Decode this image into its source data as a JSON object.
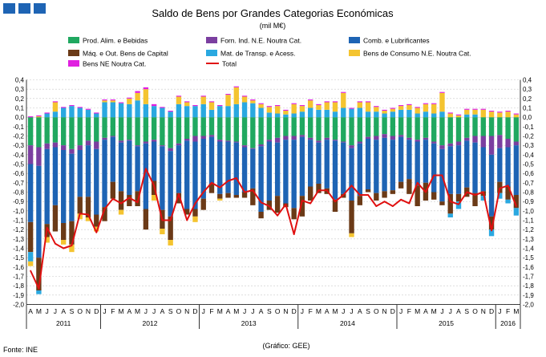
{
  "header": {
    "title": "Saldo de Bens por Grandes Categorias Económicas",
    "subtitle": "(mil M€)"
  },
  "footer": {
    "source": "Fonte: INE",
    "credit": "(Gráfico: GEE)"
  },
  "colors": {
    "food": "#20a860",
    "industrial": "#7b3fa0",
    "fuels": "#1e64b4",
    "capital": "#6b3a17",
    "transport": "#2aa8e0",
    "consumer": "#f4c430",
    "other": "#e020e0",
    "total": "#e01010",
    "brand": "#1e64b4"
  },
  "chart_data": {
    "type": "bar",
    "stacked": true,
    "title": "Saldo de Bens por Grandes Categorias Económicas",
    "ylabel": "(mil M€)",
    "ylim": [
      -2.0,
      0.4
    ],
    "yticks": [
      "0,4",
      "0,3",
      "0,2",
      "0,1",
      "0,0",
      "-0,1",
      "-0,2",
      "-0,3",
      "-0,4",
      "-0,5",
      "-0,6",
      "-0,7",
      "-0,8",
      "-0,9",
      "-1,0",
      "-1,1",
      "-1,2",
      "-1,3",
      "-1,4",
      "-1,5",
      "-1,6",
      "-1,7",
      "-1,8",
      "-1,9",
      "-2,0"
    ],
    "ytick_values": [
      0.4,
      0.3,
      0.2,
      0.1,
      0.0,
      -0.1,
      -0.2,
      -0.3,
      -0.4,
      -0.5,
      -0.6,
      -0.7,
      -0.8,
      -0.9,
      -1.0,
      -1.1,
      -1.2,
      -1.3,
      -1.4,
      -1.5,
      -1.6,
      -1.7,
      -1.8,
      -1.9,
      -2.0
    ],
    "month_labels": [
      "A",
      "M",
      "J",
      "J",
      "A",
      "S",
      "O",
      "N",
      "D",
      "J",
      "F",
      "M",
      "A",
      "M",
      "J",
      "J",
      "A",
      "S",
      "O",
      "N",
      "D",
      "J",
      "F",
      "M",
      "A",
      "M",
      "J",
      "J",
      "A",
      "S",
      "O",
      "N",
      "D",
      "J",
      "F",
      "M",
      "A",
      "M",
      "J",
      "J",
      "A",
      "S",
      "O",
      "N",
      "D",
      "J",
      "F",
      "M",
      "A",
      "M",
      "J",
      "J",
      "A",
      "S",
      "O",
      "N",
      "D",
      "J",
      "F",
      "M"
    ],
    "years": [
      {
        "label": "2011",
        "start": 0,
        "end": 8
      },
      {
        "label": "2012",
        "start": 9,
        "end": 20
      },
      {
        "label": "2013",
        "start": 21,
        "end": 32
      },
      {
        "label": "2014",
        "start": 33,
        "end": 44
      },
      {
        "label": "2015",
        "start": 45,
        "end": 56
      },
      {
        "label": "2016",
        "start": 57,
        "end": 59
      }
    ],
    "series": [
      {
        "key": "food",
        "name": "Prod. Alim. e Bebidas",
        "color": "#20a860",
        "values": [
          -0.3,
          -0.32,
          -0.28,
          -0.27,
          -0.3,
          -0.34,
          -0.3,
          -0.25,
          -0.26,
          -0.22,
          -0.2,
          -0.25,
          -0.24,
          -0.3,
          -0.26,
          -0.24,
          -0.3,
          -0.33,
          -0.28,
          -0.23,
          -0.2,
          -0.2,
          -0.19,
          -0.24,
          -0.25,
          -0.26,
          -0.3,
          -0.33,
          -0.29,
          -0.24,
          -0.22,
          -0.2,
          -0.2,
          -0.19,
          -0.22,
          -0.25,
          -0.22,
          -0.24,
          -0.26,
          -0.3,
          -0.26,
          -0.21,
          -0.2,
          -0.18,
          -0.2,
          -0.19,
          -0.22,
          -0.24,
          -0.22,
          -0.26,
          -0.3,
          -0.28,
          -0.26,
          -0.22,
          -0.2,
          -0.2,
          -0.2,
          -0.19,
          -0.23,
          -0.26
        ]
      },
      {
        "key": "industrial",
        "name": "Forn. Ind. N.E. Noutra Cat.",
        "color": "#7b3fa0",
        "values": [
          -0.2,
          -0.2,
          -0.06,
          -0.05,
          -0.05,
          -0.05,
          -0.05,
          -0.05,
          -0.08,
          -0.02,
          -0.01,
          -0.02,
          -0.01,
          -0.01,
          -0.02,
          -0.02,
          -0.01,
          -0.03,
          -0.02,
          -0.02,
          -0.06,
          -0.03,
          -0.02,
          -0.02,
          -0.01,
          -0.01,
          -0.02,
          -0.01,
          -0.02,
          -0.02,
          -0.05,
          -0.04,
          -0.04,
          -0.02,
          -0.02,
          -0.02,
          -0.02,
          -0.01,
          -0.01,
          -0.03,
          -0.02,
          -0.02,
          -0.04,
          -0.04,
          -0.04,
          -0.02,
          -0.02,
          -0.02,
          -0.02,
          -0.02,
          -0.04,
          -0.03,
          -0.04,
          -0.03,
          -0.07,
          -0.12,
          -0.2,
          -0.14,
          -0.09,
          -0.04
        ]
      },
      {
        "key": "fuels",
        "name": "Comb. e Lubrificantes",
        "color": "#1e64b4",
        "values": [
          -0.62,
          -0.98,
          -0.8,
          -0.62,
          -0.78,
          -0.72,
          -0.5,
          -0.55,
          -0.7,
          -0.72,
          -0.48,
          -0.52,
          -0.58,
          -0.48,
          -0.7,
          -0.42,
          -0.68,
          -0.7,
          -0.51,
          -0.73,
          -0.72,
          -0.64,
          -0.5,
          -0.56,
          -0.55,
          -0.56,
          -0.48,
          -0.42,
          -0.7,
          -0.63,
          -0.57,
          -0.68,
          -0.73,
          -0.63,
          -0.5,
          -0.44,
          -0.52,
          -0.63,
          -0.55,
          -0.56,
          -0.56,
          -0.54,
          -0.57,
          -0.57,
          -0.54,
          -0.48,
          -0.42,
          -0.47,
          -0.46,
          -0.52,
          -0.56,
          -0.51,
          -0.52,
          -0.5,
          -0.54,
          -0.47,
          -0.66,
          -0.36,
          -0.42,
          -0.53
        ]
      },
      {
        "key": "capital",
        "name": "Máq. e Out. Bens de Capital",
        "color": "#6b3a17",
        "values": [
          -0.32,
          -0.35,
          -0.14,
          -0.28,
          -0.18,
          -0.25,
          -0.18,
          -0.22,
          -0.13,
          -0.15,
          -0.18,
          -0.2,
          -0.12,
          -0.16,
          -0.22,
          -0.15,
          -0.2,
          -0.25,
          -0.11,
          -0.06,
          -0.08,
          -0.12,
          -0.1,
          -0.05,
          -0.05,
          -0.03,
          -0.06,
          -0.18,
          -0.07,
          -0.1,
          -0.18,
          -0.04,
          -0.12,
          -0.22,
          -0.15,
          -0.1,
          -0.06,
          -0.13,
          -0.04,
          -0.35,
          -0.1,
          -0.03,
          -0.08,
          -0.07,
          -0.04,
          -0.07,
          -0.16,
          -0.22,
          -0.19,
          -0.08,
          -0.04,
          -0.21,
          -0.08,
          -0.1,
          -0.14,
          -0.05,
          -0.14,
          -0.12,
          -0.14,
          -0.14
        ]
      },
      {
        "key": "transport",
        "name": "Mat. de Transp. e Acess.",
        "color": "#2aa8e0",
        "values": [
          -0.1,
          -0.04,
          0.04,
          0.06,
          0.1,
          0.12,
          0.1,
          0.08,
          0.04,
          0.16,
          0.16,
          0.15,
          0.14,
          0.18,
          0.14,
          0.12,
          0.1,
          0.06,
          0.14,
          0.12,
          0.12,
          0.14,
          0.08,
          0.12,
          0.12,
          0.14,
          0.16,
          0.15,
          0.1,
          0.05,
          0.04,
          0.03,
          0.04,
          0.06,
          0.1,
          0.08,
          0.08,
          0.06,
          0.1,
          0.09,
          0.1,
          0.06,
          0.06,
          0.04,
          0.06,
          0.08,
          0.08,
          0.04,
          0.06,
          0.04,
          0.06,
          -0.04,
          -0.08,
          0.03,
          0.03,
          -0.05,
          -0.07,
          -0.06,
          -0.04,
          -0.08
        ]
      },
      {
        "key": "consumer",
        "name": "Bens de Consumo N.E. Noutra Cat.",
        "color": "#f4c430",
        "values": [
          -0.05,
          0.01,
          -0.06,
          0.1,
          -0.05,
          -0.08,
          -0.06,
          -0.04,
          -0.05,
          0.02,
          0.02,
          -0.05,
          0.06,
          0.08,
          0.16,
          -0.06,
          -0.06,
          -0.06,
          0.08,
          0.04,
          -0.06,
          0.08,
          0.08,
          -0.02,
          0.12,
          0.18,
          0.06,
          0.03,
          0.04,
          0.06,
          0.08,
          0.04,
          0.1,
          0.06,
          0.08,
          0.05,
          0.08,
          0.1,
          0.16,
          -0.04,
          0.06,
          0.1,
          0.05,
          0.03,
          0.03,
          0.04,
          0.05,
          0.06,
          0.08,
          0.1,
          0.2,
          0.04,
          0.02,
          0.05,
          0.05,
          0.08,
          0.06,
          0.05,
          0.06,
          0.03
        ]
      },
      {
        "key": "other",
        "name": "Bens NE Noutra Cat.",
        "color": "#e020e0",
        "values": [
          0.01,
          0.01,
          0.01,
          0.01,
          0.01,
          0.01,
          0.01,
          0.01,
          0.01,
          0.01,
          0.01,
          0.01,
          0.01,
          0.02,
          0.02,
          0.02,
          0.01,
          0.01,
          0.01,
          0.01,
          0.01,
          0.01,
          0.01,
          0.01,
          0.01,
          0.01,
          0.01,
          0.01,
          0.01,
          0.01,
          0.01,
          0.01,
          0.01,
          0.01,
          0.01,
          0.01,
          0.01,
          0.01,
          0.01,
          0.01,
          0.01,
          0.01,
          0.01,
          0.01,
          0.01,
          0.01,
          0.01,
          0.01,
          0.01,
          0.01,
          0.01,
          0.01,
          0.01,
          0.01,
          0.01,
          0.01,
          0.01,
          0.01,
          0.01,
          0.01
        ]
      }
    ],
    "total": {
      "name": "Total",
      "color": "#e01010",
      "values": [
        -1.64,
        -1.83,
        -1.18,
        -1.35,
        -1.4,
        -1.37,
        -1.03,
        -1.04,
        -1.23,
        -0.98,
        -0.87,
        -0.92,
        -0.86,
        -0.91,
        -0.55,
        -0.73,
        -1.1,
        -1.1,
        -0.82,
        -1.1,
        -0.92,
        -0.8,
        -0.7,
        -0.75,
        -0.68,
        -0.65,
        -0.8,
        -0.78,
        -0.91,
        -0.95,
        -1.05,
        -0.93,
        -1.25,
        -0.89,
        -0.92,
        -0.78,
        -0.78,
        -0.9,
        -0.83,
        -0.73,
        -0.83,
        -0.83,
        -0.95,
        -0.9,
        -0.95,
        -0.88,
        -0.92,
        -0.7,
        -0.8,
        -0.62,
        -0.62,
        -0.9,
        -0.93,
        -0.8,
        -0.83,
        -0.8,
        -1.21,
        -0.76,
        -0.73,
        -0.95
      ]
    }
  }
}
